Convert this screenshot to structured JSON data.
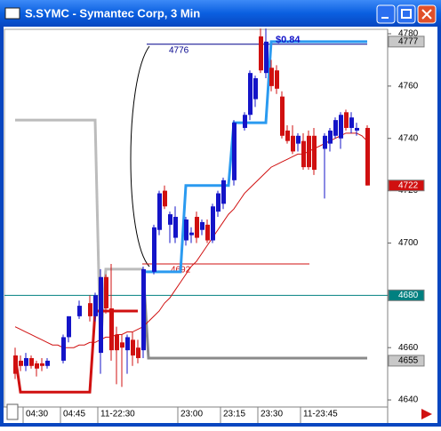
{
  "window": {
    "title": "S.SYMC - Symantec Corp, 3 Min"
  },
  "chart_data": {
    "type": "candlestick",
    "categories": [
      null,
      null,
      "04:30",
      null,
      null,
      null,
      null,
      null,
      null,
      "04:45",
      null,
      null,
      null,
      null,
      null,
      null,
      "11-22:30",
      null,
      null,
      null,
      null,
      null,
      null,
      null,
      null,
      null,
      null,
      null,
      null,
      null,
      null,
      "23:00",
      null,
      null,
      null,
      null,
      null,
      null,
      null,
      "23:15",
      null,
      null,
      null,
      null,
      null,
      null,
      "23:30",
      null,
      null,
      null,
      null,
      null,
      null,
      null,
      "11-23:45",
      null,
      null,
      null,
      null,
      null,
      null,
      null,
      null,
      null,
      null,
      null,
      null
    ],
    "open": [
      4657,
      4655,
      4653,
      4656,
      4654,
      4654,
      4653,
      null,
      null,
      4655,
      4664,
      null,
      4672,
      null,
      4677,
      4672,
      4658,
      4687,
      4675,
      4665,
      4662,
      4659,
      4663,
      4660,
      4659,
      null,
      4689,
      4705,
      4720,
      4707,
      4702,
      null,
      4701,
      4703,
      4710,
      4705,
      4707,
      4701,
      4712,
      4715,
      null,
      4724,
      null,
      4744,
      4749,
      4755,
      4779,
      4765,
      4767,
      4766,
      4756,
      4743,
      4741,
      4738,
      4739,
      4741,
      4741,
      null,
      4736,
      4738,
      4741,
      4740,
      4750,
      4744,
      4743,
      null,
      4744
    ],
    "high": [
      4660,
      4657,
      4658,
      4657,
      4655,
      4656,
      4656,
      null,
      null,
      4665,
      4672,
      null,
      4678,
      null,
      4680,
      4681,
      4690,
      4688,
      4692,
      4668,
      4665,
      4665,
      4666,
      4663,
      4691,
      null,
      4707,
      4720,
      4722,
      4712,
      4714,
      null,
      4710,
      4706,
      4712,
      4709,
      4709,
      4715,
      4720,
      4725,
      null,
      4747,
      null,
      4750,
      4766,
      4764,
      4782,
      4782,
      4770,
      4768,
      4758,
      4745,
      4745,
      4742,
      4742,
      4743,
      4744,
      null,
      4742,
      4744,
      4748,
      4750,
      4751,
      4750,
      4746,
      null,
      4745
    ],
    "low": [
      4648,
      4651,
      4651,
      4652,
      4649,
      4651,
      4652,
      null,
      null,
      4654,
      4662,
      null,
      4671,
      null,
      4670,
      4670,
      4650,
      4673,
      4655,
      4646,
      4645,
      4650,
      4653,
      4654,
      4656,
      null,
      4688,
      4703,
      4713,
      4700,
      4700,
      null,
      4699,
      4700,
      4700,
      4703,
      4700,
      4700,
      4710,
      4713,
      null,
      4722,
      null,
      4743,
      4747,
      4752,
      4765,
      4763,
      4758,
      4757,
      4740,
      4738,
      4734,
      4735,
      4728,
      4728,
      4726,
      null,
      4717,
      4735,
      4740,
      4736,
      4743,
      4742,
      4741,
      null,
      4722
    ],
    "close": [
      4650,
      4653,
      4656,
      4653,
      4652,
      4653,
      4655,
      null,
      null,
      4664,
      4672,
      null,
      4676,
      null,
      4672,
      4680,
      4687,
      4675,
      4659,
      4659,
      4660,
      4664,
      4657,
      4656,
      4690,
      null,
      4706,
      4719,
      4714,
      4711,
      4710,
      null,
      4709,
      4704,
      4702,
      4708,
      4701,
      4714,
      4719,
      4724,
      null,
      4746,
      null,
      4749,
      4765,
      4763,
      4766,
      4777,
      4760,
      4759,
      4741,
      4739,
      4735,
      4741,
      4729,
      4729,
      4728,
      null,
      4741,
      4743,
      4747,
      4749,
      4744,
      4748,
      4744,
      null,
      4722
    ],
    "up_color": "#1414c8",
    "down_color": "#d01010",
    "lines": [
      {
        "color": "#bcbcbc",
        "width": 3,
        "values": [
          4747,
          4747,
          4747,
          4747,
          4747,
          4747,
          4747,
          4747,
          4747,
          4747,
          4747,
          4747,
          4747,
          4747,
          4747,
          4747,
          4660,
          4690,
          4690,
          4690,
          4690,
          4690,
          4690,
          4690,
          4690,
          null,
          null,
          null,
          null,
          null,
          null,
          null,
          null,
          null,
          null,
          null,
          null,
          null,
          null,
          null,
          null,
          null,
          null,
          null,
          null,
          null,
          null,
          null,
          null,
          null,
          null,
          null,
          null,
          null,
          null,
          null,
          null,
          null,
          null,
          null,
          null,
          null,
          null,
          null,
          null,
          null,
          null
        ]
      },
      {
        "color": "#8a8a8a",
        "width": 3,
        "values": [
          null,
          null,
          null,
          null,
          null,
          null,
          null,
          null,
          null,
          null,
          null,
          null,
          null,
          null,
          null,
          null,
          null,
          null,
          null,
          null,
          null,
          null,
          null,
          null,
          4690,
          4656,
          4656,
          4656,
          4656,
          4656,
          4656,
          4656,
          4656,
          4656,
          4656,
          4656,
          4656,
          4656,
          4656,
          4656,
          4656,
          4656,
          4656,
          4656,
          4656,
          4656,
          4656,
          4656,
          4656,
          4656,
          4656,
          4656,
          4656,
          4656,
          4656,
          4656,
          4656,
          4656,
          4656,
          4656,
          4656,
          4656,
          4656,
          4656,
          4656,
          4656,
          4656
        ]
      },
      {
        "color": "#d01010",
        "width": 3,
        "values": [
          4657,
          4643,
          4643,
          4643,
          4643,
          4643,
          4643,
          4643,
          4643,
          4643,
          4643,
          4643,
          4643,
          4643,
          4643,
          4674,
          4674,
          4674,
          4674,
          4674,
          4674,
          4674,
          4674,
          4674,
          null,
          null,
          null,
          null,
          null,
          null,
          null,
          null,
          null,
          null,
          null,
          null,
          null,
          null,
          null,
          null,
          null,
          null,
          null,
          null,
          null,
          null,
          null,
          null,
          null,
          null,
          null,
          null,
          null,
          null,
          null,
          null,
          null,
          null,
          null,
          null,
          null,
          null,
          null,
          null,
          null,
          null,
          null
        ]
      },
      {
        "color": "#2a9af0",
        "width": 3,
        "values": [
          null,
          null,
          null,
          null,
          null,
          null,
          null,
          null,
          null,
          null,
          null,
          null,
          null,
          null,
          null,
          null,
          null,
          null,
          null,
          null,
          null,
          null,
          null,
          null,
          4689,
          4689,
          4689,
          4689,
          4689,
          4689,
          4689,
          4689,
          4722,
          4722,
          4722,
          4722,
          4722,
          4722,
          4722,
          4722,
          4722,
          4746,
          4746,
          4746,
          4746,
          4746,
          4746,
          4746,
          4777,
          4777,
          4777,
          4777,
          4777,
          4777,
          4777,
          4777,
          4777,
          4777,
          4777,
          4777,
          4777,
          4777,
          4777,
          4777,
          4777,
          4777,
          4777
        ]
      },
      {
        "color": "#d01010",
        "width": 1,
        "values": [
          4668,
          4667,
          4666,
          4665,
          4664,
          4663,
          4662,
          4661,
          4661,
          4660,
          4660,
          4660,
          4661,
          4661,
          4662,
          4662,
          4663,
          4664,
          4664,
          4665,
          4665,
          4666,
          4666,
          4667,
          4668,
          4670,
          4672,
          4674,
          4677,
          4679,
          4682,
          4685,
          4688,
          4691,
          4693,
          4696,
          4699,
          4702,
          4705,
          4708,
          4711,
          4713,
          4716,
          4719,
          4721,
          4723,
          4725,
          4727,
          4729,
          4730,
          4731,
          4732,
          4733,
          4734,
          4734,
          4735,
          4736,
          4737,
          4738,
          4739,
          4740,
          4741,
          4742,
          4742,
          4742,
          4741,
          4739
        ]
      }
    ],
    "levels": [
      {
        "value": 4776,
        "color": "#00008b",
        "labeled": true
      },
      {
        "value": 4692,
        "color": "#d01010",
        "labeled": true
      },
      {
        "value": 4680,
        "color": "#008080",
        "labeled": false
      }
    ],
    "annotation": "$0.84",
    "price_markers": [
      {
        "value": 4777,
        "color": "#c8c8c8",
        "text_color": "#000000"
      },
      {
        "value": 4722,
        "color": "#d01010",
        "text_color": "#ffffff"
      },
      {
        "value": 4680,
        "color": "#008080",
        "text_color": "#ffffff"
      },
      {
        "value": 4655,
        "color": "#c8c8c8",
        "text_color": "#000000"
      }
    ],
    "ylim": [
      4637.3,
      4781.7
    ],
    "yticks": [
      4640,
      4660,
      4680,
      4700,
      4720,
      4740,
      4760,
      4780
    ]
  }
}
